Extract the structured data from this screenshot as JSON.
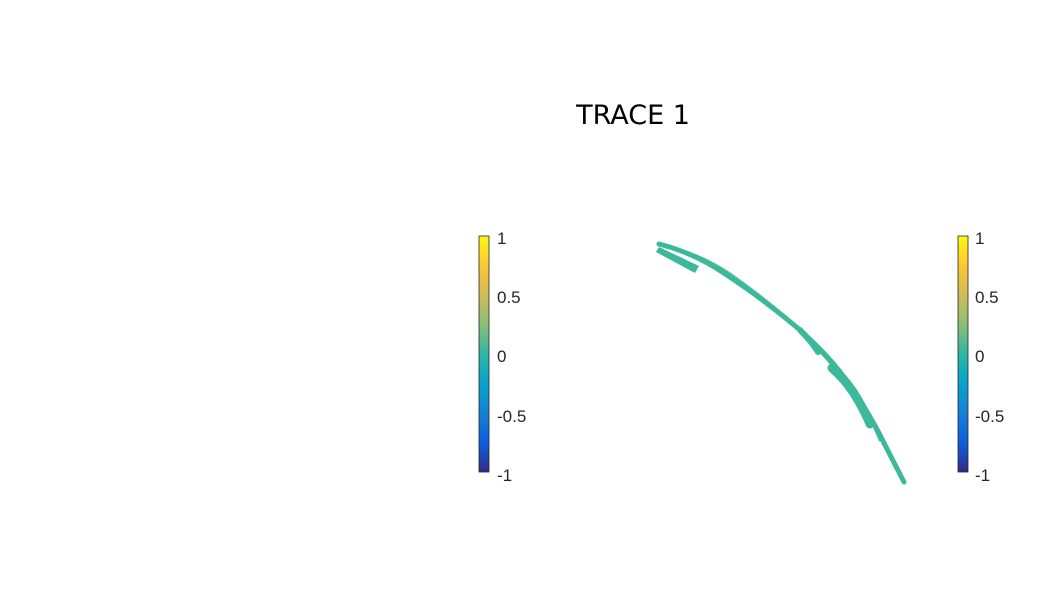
{
  "chart_data": {
    "type": "scatter",
    "title": "TRACE 1",
    "colormap": "parula",
    "color_range": [
      -1,
      1
    ],
    "trace_color": "#3cb89a",
    "colorbars": [
      {
        "name": "left",
        "ticks": [
          {
            "value": 1,
            "label": "1"
          },
          {
            "value": 0.5,
            "label": "0.5"
          },
          {
            "value": 0,
            "label": "0"
          },
          {
            "value": -0.5,
            "label": "-0.5"
          },
          {
            "value": -1,
            "label": "-1"
          }
        ]
      },
      {
        "name": "right",
        "ticks": [
          {
            "value": 1,
            "label": "1"
          },
          {
            "value": 0.5,
            "label": "0.5"
          },
          {
            "value": 0,
            "label": "0"
          },
          {
            "value": -0.5,
            "label": "-0.5"
          },
          {
            "value": -1,
            "label": "-1"
          }
        ]
      }
    ]
  }
}
